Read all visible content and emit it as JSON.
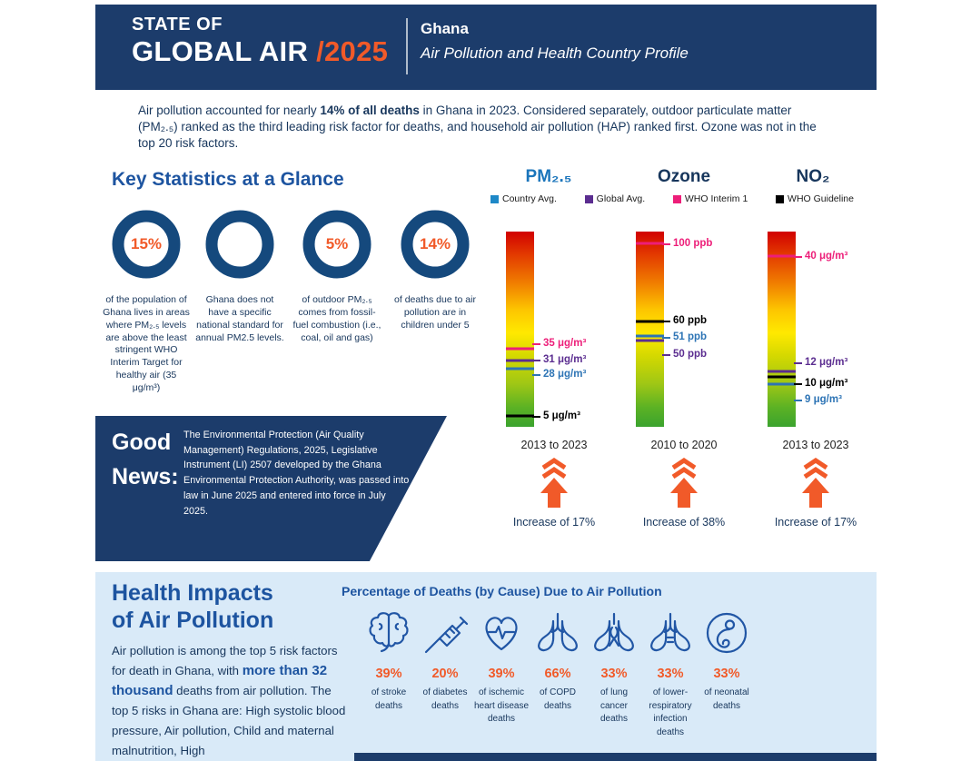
{
  "header": {
    "brand_line1": "STATE OF",
    "brand_line2": "GLOBAL AIR",
    "brand_year": "/2025",
    "country": "Ghana",
    "subtitle": "Air Pollution and Health Country Profile"
  },
  "intro": {
    "part1": "Air pollution accounted for nearly ",
    "bold": "14% of all deaths",
    "part2": " in Ghana in 2023. Considered separately, outdoor particulate matter (PM₂.₅) ranked as the third leading risk factor for deaths, and household air pollution (HAP) ranked first. Ozone was not in the top 20 risk factors."
  },
  "key_stats": {
    "title": "Key Statistics at a Glance",
    "items": [
      {
        "percent": 15,
        "percent_label": "15%",
        "caption": "of the population of Ghana lives in areas where PM₂.₅ levels are above the least stringent WHO Interim Target for healthy air (35 μg/m³)"
      },
      {
        "percent": 0,
        "percent_label": "",
        "caption": "Ghana does not have a specific national standard for annual PM2.5 levels."
      },
      {
        "percent": 5,
        "percent_label": "5%",
        "caption": "of outdoor PM₂.₅ comes from fossil-fuel combustion (i.e., coal, oil and gas)"
      },
      {
        "percent": 14,
        "percent_label": "14%",
        "caption": "of deaths due to air pollution are in children under 5"
      }
    ]
  },
  "pollutant_charts": {
    "legend": [
      {
        "label": "Country Avg.",
        "color": "#1e88c7"
      },
      {
        "label": "Global Avg.",
        "color": "#5b2d90"
      },
      {
        "label": "WHO Interim 1",
        "color": "#ed1e79"
      },
      {
        "label": "WHO Guideline",
        "color": "#000000"
      }
    ],
    "charts": [
      {
        "title": "PM₂.₅",
        "range": "2013 to 2023",
        "increase": "Increase of 17%",
        "markers": [
          {
            "role": "who-interim-1",
            "label": "35 μg/m³",
            "value": 35,
            "color": "#ed1e79",
            "line_pct": 60,
            "label_pct": 57
          },
          {
            "role": "global-avg",
            "label": "31 μg/m³",
            "value": 31,
            "color": "#5b2d90",
            "line_pct": 66,
            "label_pct": 65.5
          },
          {
            "role": "country-avg",
            "label": "28 μg/m³",
            "value": 28,
            "color": "#2d74b5",
            "line_pct": 70,
            "label_pct": 73
          },
          {
            "role": "who-guideline",
            "label": "5 μg/m³",
            "value": 5,
            "color": "#000000",
            "line_pct": 94.5,
            "label_pct": 94.5
          }
        ]
      },
      {
        "title": "Ozone",
        "range": "2010 to 2020",
        "increase": "Increase of 38%",
        "markers": [
          {
            "role": "who-interim-1",
            "label": "100 ppb",
            "value": 100,
            "color": "#ed1e79",
            "line_pct": 6,
            "label_pct": 6
          },
          {
            "role": "who-guideline",
            "label": "60 ppb",
            "value": 60,
            "color": "#000000",
            "line_pct": 46,
            "label_pct": 45.5
          },
          {
            "role": "country-avg",
            "label": "51 ppb",
            "value": 51,
            "color": "#2d74b5",
            "line_pct": 53.5,
            "label_pct": 54
          },
          {
            "role": "global-avg",
            "label": "50 ppb",
            "value": 50,
            "color": "#5b2d90",
            "line_pct": 56,
            "label_pct": 63
          }
        ]
      },
      {
        "title": "NO₂",
        "range": "2013 to 2023",
        "increase": "Increase of 17%",
        "markers": [
          {
            "role": "who-interim-1",
            "label": "40 μg/m³",
            "value": 40,
            "color": "#ed1e79",
            "line_pct": 12.5,
            "label_pct": 12.5
          },
          {
            "role": "global-avg",
            "label": "12 μg/m³",
            "value": 12,
            "color": "#5b2d90",
            "line_pct": 71.5,
            "label_pct": 67
          },
          {
            "role": "who-guideline",
            "label": "10 μg/m³",
            "value": 10,
            "color": "#000000",
            "line_pct": 74.5,
            "label_pct": 77.5
          },
          {
            "role": "country-avg",
            "label": "9 μg/m³",
            "value": 9,
            "color": "#2d74b5",
            "line_pct": 78,
            "label_pct": 86
          }
        ]
      }
    ]
  },
  "good_news": {
    "label_line1": "Good",
    "label_line2": "News:",
    "text": "The Environmental Protection (Air Quality Management) Regulations, 2025, Legislative Instrument (LI) 2507 developed by the Ghana Environmental Protection Authority, was passed into law in June 2025 and entered into force in July 2025."
  },
  "health": {
    "title_line1": "Health Impacts",
    "title_line2": "of Air Pollution",
    "body_part1": "Air pollution is among the top 5 risk factors for death in Ghana, with ",
    "body_bold": "more than 32 thousand",
    "body_part2": " deaths from air pollution. The top 5 risks in Ghana are: High systolic blood pressure, Air pollution, Child and maternal malnutrition, High",
    "chart_title": "Percentage of Deaths (by Cause) Due to Air Pollution",
    "causes": [
      {
        "percent": "39%",
        "caption": "of stroke deaths"
      },
      {
        "percent": "20%",
        "caption": "of diabetes deaths"
      },
      {
        "percent": "39%",
        "caption": "of ischemic heart disease deaths"
      },
      {
        "percent": "66%",
        "caption": "of COPD deaths"
      },
      {
        "percent": "33%",
        "caption": "of lung cancer deaths"
      },
      {
        "percent": "33%",
        "caption": "of lower-respiratory infection deaths"
      },
      {
        "percent": "33%",
        "caption": "of neonatal deaths"
      }
    ]
  },
  "colors": {
    "navy": "#1c3c6b",
    "heading_blue": "#1d54a0",
    "accent_orange": "#f15a29",
    "pm_title_blue": "#1b75bb",
    "country_avg_blue": "#2d74b5",
    "global_avg_purple": "#5b2d90",
    "who_interim_pink": "#ed1e79",
    "who_guideline_black": "#000000",
    "donut_green": "#3aaa35",
    "light_blue_bg": "#d9eaf8"
  },
  "chart_data": [
    {
      "type": "pie",
      "title": "Key Statistics at a Glance (donut rings)",
      "categories": [
        "population living above WHO Interim Target 1 (35 μg/m³)",
        "national annual PM2.5 standard",
        "outdoor PM2.5 from fossil-fuel combustion",
        "air pollution deaths in children under 5"
      ],
      "values": [
        15,
        null,
        5,
        14
      ]
    },
    {
      "type": "bar",
      "title": "PM₂.₅",
      "ylabel": "μg/m³",
      "series": [
        {
          "name": "WHO Interim 1",
          "values": [
            35
          ]
        },
        {
          "name": "Global Avg.",
          "values": [
            31
          ]
        },
        {
          "name": "Country Avg.",
          "values": [
            28
          ]
        },
        {
          "name": "WHO Guideline",
          "values": [
            5
          ]
        }
      ],
      "period": "2013 to 2023",
      "trend": "Increase of 17%"
    },
    {
      "type": "bar",
      "title": "Ozone",
      "ylabel": "ppb",
      "series": [
        {
          "name": "WHO Interim 1",
          "values": [
            100
          ]
        },
        {
          "name": "WHO Guideline",
          "values": [
            60
          ]
        },
        {
          "name": "Country Avg.",
          "values": [
            51
          ]
        },
        {
          "name": "Global Avg.",
          "values": [
            50
          ]
        }
      ],
      "period": "2010 to 2020",
      "trend": "Increase of 38%"
    },
    {
      "type": "bar",
      "title": "NO₂",
      "ylabel": "μg/m³",
      "series": [
        {
          "name": "WHO Interim 1",
          "values": [
            40
          ]
        },
        {
          "name": "Global Avg.",
          "values": [
            12
          ]
        },
        {
          "name": "WHO Guideline",
          "values": [
            10
          ]
        },
        {
          "name": "Country Avg.",
          "values": [
            9
          ]
        }
      ],
      "period": "2013 to 2023",
      "trend": "Increase of 17%"
    },
    {
      "type": "bar",
      "title": "Percentage of Deaths (by Cause) Due to Air Pollution",
      "categories": [
        "stroke",
        "diabetes",
        "ischemic heart disease",
        "COPD",
        "lung cancer",
        "lower-respiratory infection",
        "neonatal"
      ],
      "values": [
        39,
        20,
        39,
        66,
        33,
        33,
        33
      ]
    }
  ]
}
